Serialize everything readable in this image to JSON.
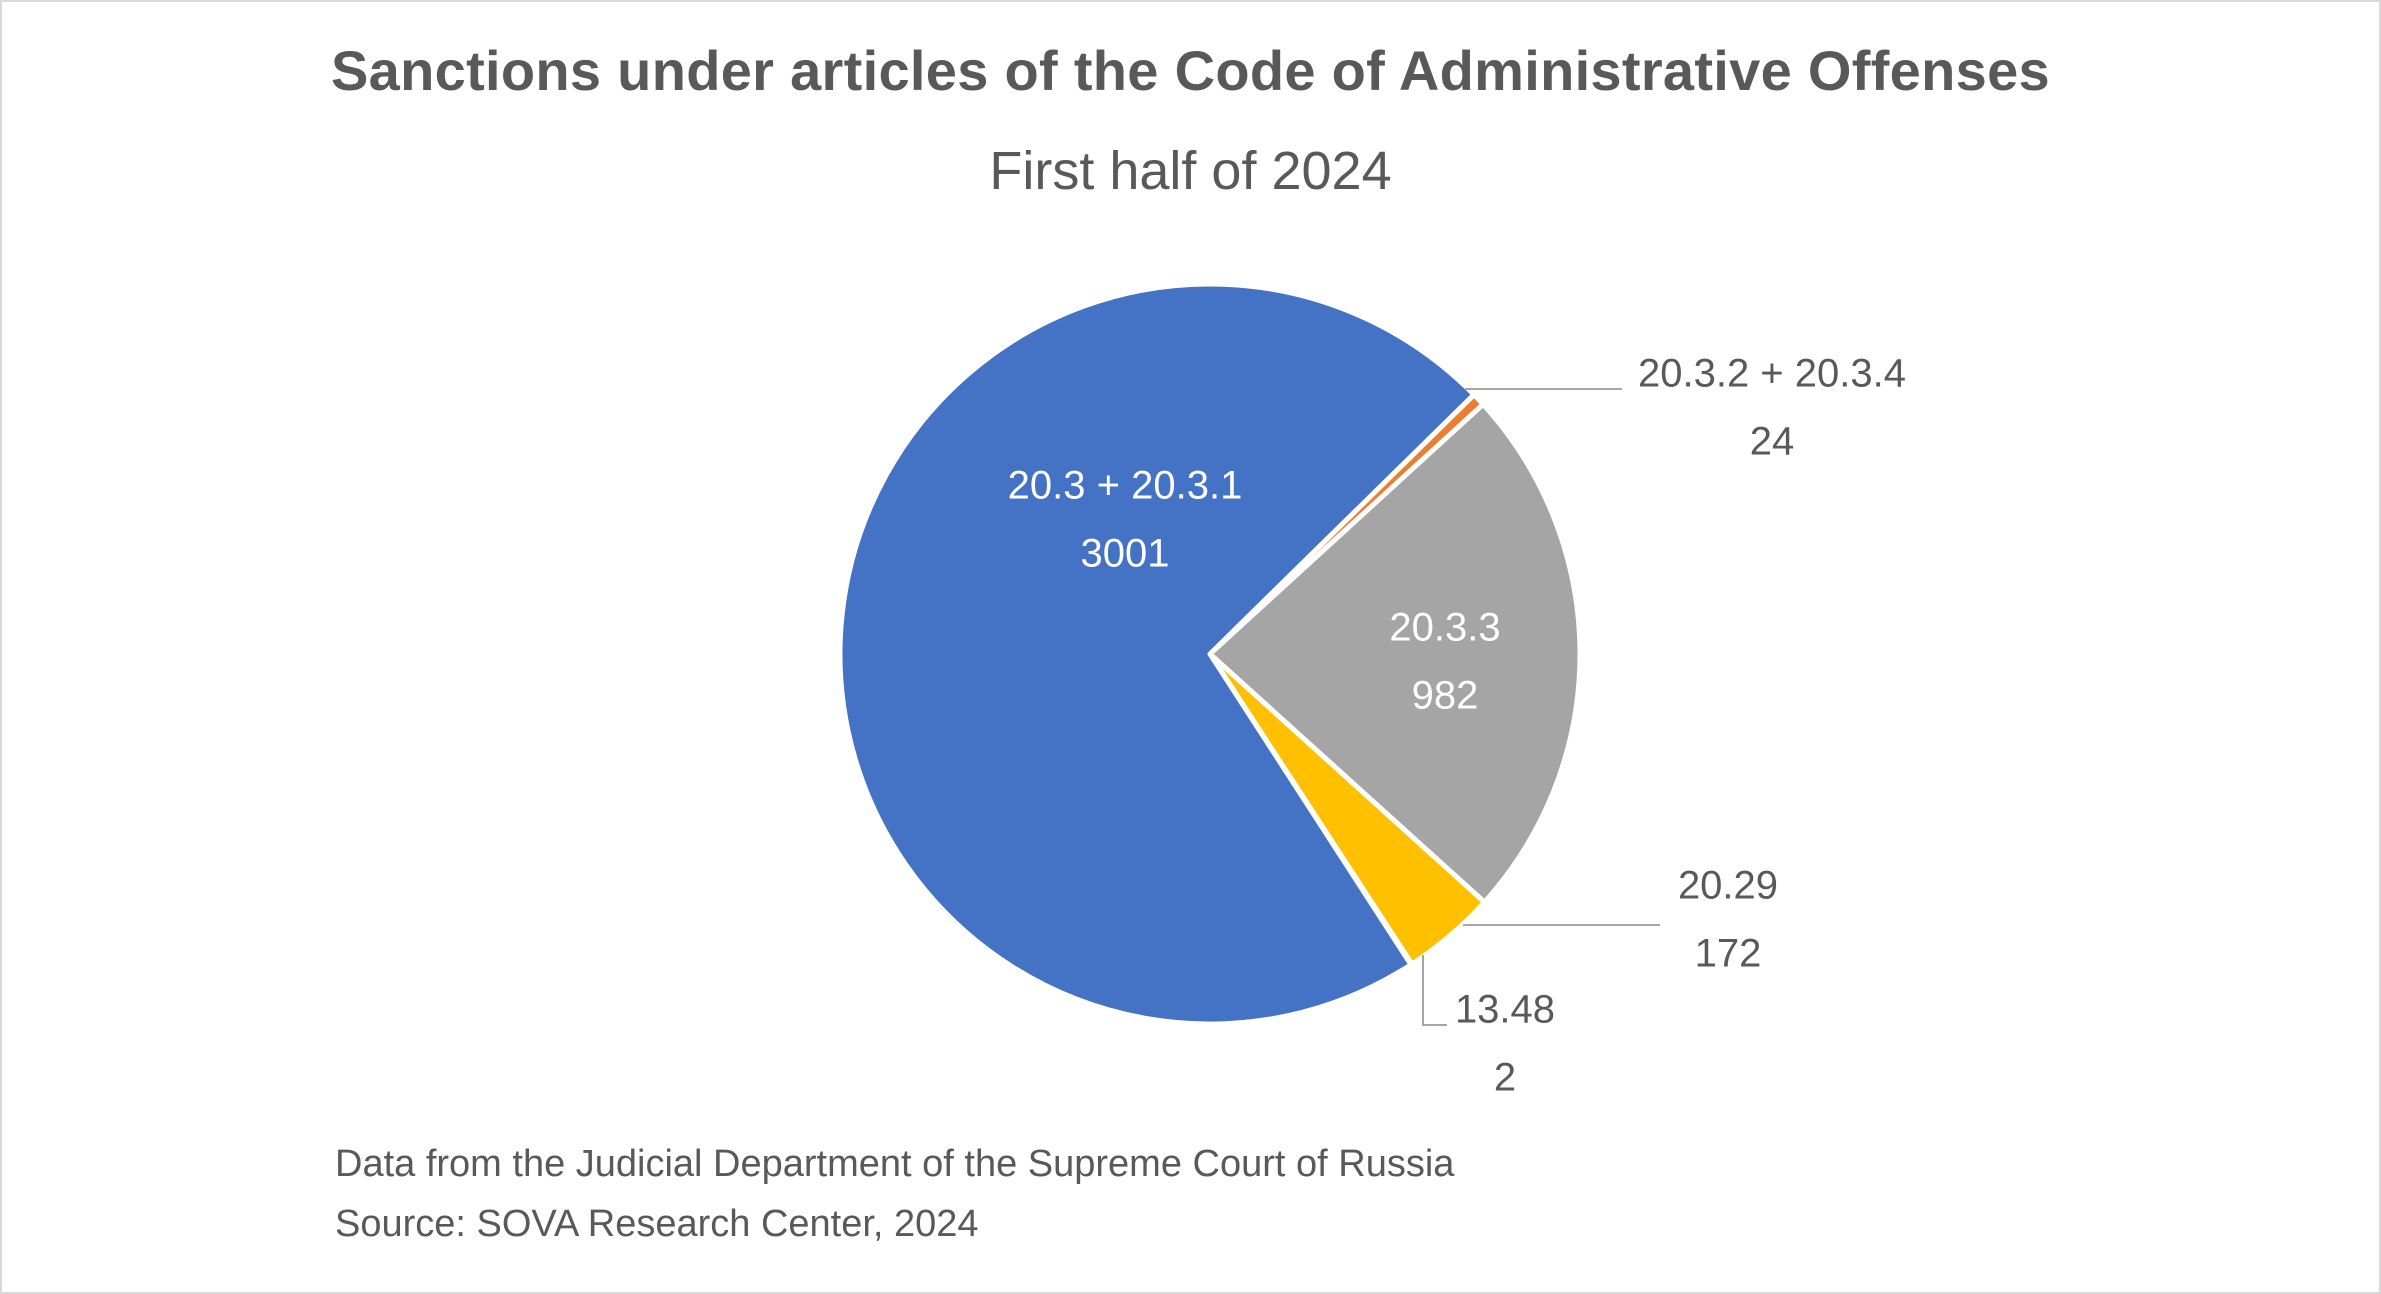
{
  "chart_data": {
    "type": "pie",
    "title": "Sanctions under articles of the Code of Administrative Offenses",
    "subtitle": "First half of 2024",
    "slices": [
      {
        "label": "20.3.2 + 20.3.4",
        "value": 24,
        "color": "#ed7d31"
      },
      {
        "label": "20.3.3",
        "value": 982,
        "color": "#a5a5a5"
      },
      {
        "label": "20.29",
        "value": 172,
        "color": "#ffc000"
      },
      {
        "label": "13.48",
        "value": 2,
        "color": "#5b9bd5"
      },
      {
        "label": "20.3 + 20.3.1",
        "value": 3001,
        "color": "#4472c4"
      }
    ],
    "legend": "none",
    "label_color_inside": "#ffffff",
    "label_color_outside": "#595959"
  },
  "footer": {
    "note": "Data from the Judicial Department of the Supreme Court of Russia",
    "source": "Source:  SOVA Research Center, 2024"
  }
}
